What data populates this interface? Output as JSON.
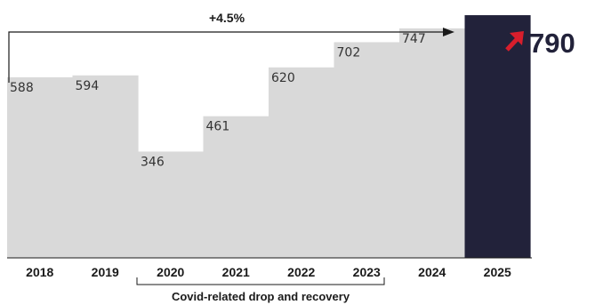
{
  "chart_data": {
    "type": "bar",
    "categories": [
      "2018",
      "2019",
      "2020",
      "2021",
      "2022",
      "2023",
      "2024",
      "2025"
    ],
    "values": [
      588,
      594,
      346,
      461,
      620,
      702,
      747,
      790
    ],
    "value_labels": [
      "588",
      "594",
      "346",
      "461",
      "620",
      "702",
      "747",
      "790"
    ],
    "title": "",
    "xlabel": "",
    "ylabel": "",
    "ylim": [
      0,
      800
    ],
    "grid": false,
    "legend": "none",
    "annotations": {
      "growth_label": "+4.5%",
      "bracket_label": "Covid-related drop and recovery",
      "bracket_from": "2020",
      "bracket_to": "2023"
    },
    "colors": {
      "bar": "#d9d9d9",
      "highlight_bar": "#22223a",
      "highlight_arrow": "#d81e2c",
      "text": "#1a1a1a"
    }
  }
}
